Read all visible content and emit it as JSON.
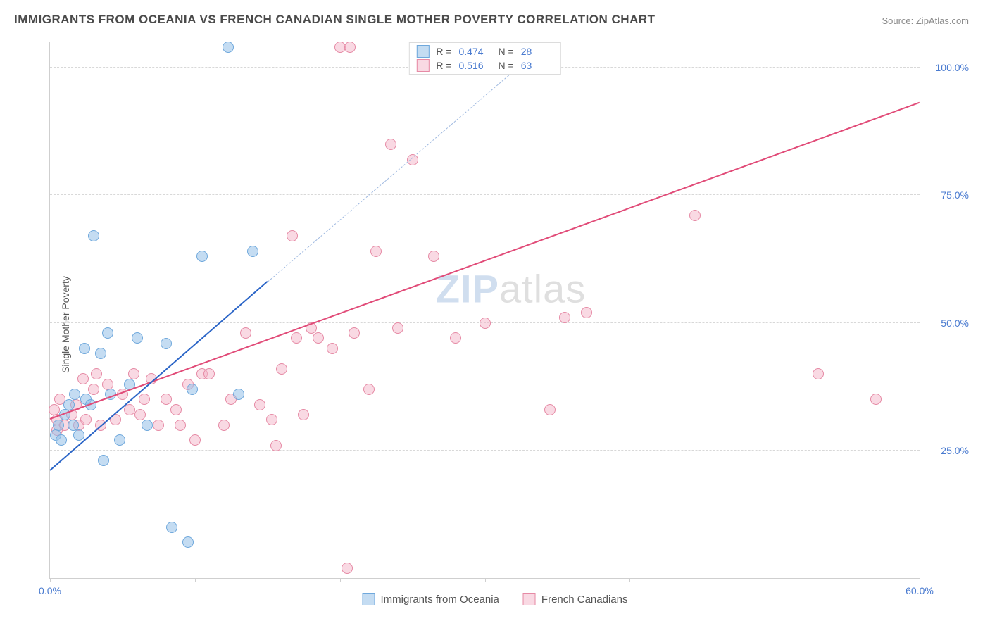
{
  "title": "IMMIGRANTS FROM OCEANIA VS FRENCH CANADIAN SINGLE MOTHER POVERTY CORRELATION CHART",
  "source": "Source: ZipAtlas.com",
  "ylabel": "Single Mother Poverty",
  "watermark": {
    "part1": "ZIP",
    "part2": "atlas"
  },
  "chart": {
    "type": "scatter",
    "xlim": [
      0,
      60
    ],
    "ylim": [
      0,
      105
    ],
    "background_color": "#ffffff",
    "grid_color": "#d8d8d8",
    "xticks": [
      0,
      10,
      20,
      30,
      40,
      50,
      60
    ],
    "xtick_labels": [
      "0.0%",
      "",
      "",
      "",
      "",
      "",
      "60.0%"
    ],
    "yticks": [
      25,
      50,
      75,
      100
    ],
    "ytick_labels": [
      "25.0%",
      "50.0%",
      "75.0%",
      "100.0%"
    ],
    "label_color": "#4a7bd0",
    "label_fontsize": 14
  },
  "series": [
    {
      "id": "oceania",
      "label": "Immigrants from Oceania",
      "fill": "rgba(148,192,232,0.55)",
      "stroke": "#6fa8dc",
      "marker_radius": 8,
      "r_value": "0.474",
      "n_value": "28",
      "regression": {
        "color_solid": "#2b65c7",
        "color_dash": "#9fb9e0",
        "x1": 0,
        "y1": 21,
        "xm": 15,
        "ym": 58,
        "x2": 33.5,
        "y2": 103
      },
      "points": [
        [
          0.4,
          28
        ],
        [
          0.6,
          30
        ],
        [
          0.8,
          27
        ],
        [
          1.0,
          32
        ],
        [
          1.3,
          34
        ],
        [
          1.6,
          30
        ],
        [
          1.7,
          36
        ],
        [
          2.0,
          28
        ],
        [
          2.4,
          45
        ],
        [
          2.5,
          35
        ],
        [
          2.8,
          34
        ],
        [
          3.5,
          44
        ],
        [
          3.7,
          23
        ],
        [
          4.0,
          48
        ],
        [
          4.2,
          36
        ],
        [
          4.8,
          27
        ],
        [
          5.5,
          38
        ],
        [
          6.0,
          47
        ],
        [
          6.7,
          30
        ],
        [
          8.0,
          46
        ],
        [
          8.4,
          10
        ],
        [
          9.5,
          7
        ],
        [
          9.8,
          37
        ],
        [
          10.5,
          63
        ],
        [
          13.0,
          36
        ],
        [
          14.0,
          64
        ],
        [
          3.0,
          67
        ],
        [
          12.3,
          104
        ]
      ]
    },
    {
      "id": "french",
      "label": "French Canadians",
      "fill": "rgba(244,180,200,0.5)",
      "stroke": "#e68aa5",
      "marker_radius": 8,
      "r_value": "0.516",
      "n_value": "63",
      "regression": {
        "color_solid": "#e14b78",
        "x1": 0,
        "y1": 31,
        "x2": 60,
        "y2": 93
      },
      "points": [
        [
          0.3,
          33
        ],
        [
          0.5,
          31
        ],
        [
          0.7,
          35
        ],
        [
          0.5,
          29
        ],
        [
          1.0,
          30
        ],
        [
          1.5,
          32
        ],
        [
          1.8,
          34
        ],
        [
          2.0,
          30
        ],
        [
          2.3,
          39
        ],
        [
          2.5,
          31
        ],
        [
          3.0,
          37
        ],
        [
          3.2,
          40
        ],
        [
          3.5,
          30
        ],
        [
          4.0,
          38
        ],
        [
          4.5,
          31
        ],
        [
          5.0,
          36
        ],
        [
          5.5,
          33
        ],
        [
          5.8,
          40
        ],
        [
          6.2,
          32
        ],
        [
          6.5,
          35
        ],
        [
          7.0,
          39
        ],
        [
          7.5,
          30
        ],
        [
          8.0,
          35
        ],
        [
          8.7,
          33
        ],
        [
          9.0,
          30
        ],
        [
          9.5,
          38
        ],
        [
          10.0,
          27
        ],
        [
          10.5,
          40
        ],
        [
          11.0,
          40
        ],
        [
          12.0,
          30
        ],
        [
          12.5,
          35
        ],
        [
          13.5,
          48
        ],
        [
          14.5,
          34
        ],
        [
          15.3,
          31
        ],
        [
          15.6,
          26
        ],
        [
          16.0,
          41
        ],
        [
          16.7,
          67
        ],
        [
          17.0,
          47
        ],
        [
          17.5,
          32
        ],
        [
          18.0,
          49
        ],
        [
          18.5,
          47
        ],
        [
          19.5,
          45
        ],
        [
          20.0,
          104
        ],
        [
          20.7,
          104
        ],
        [
          21.0,
          48
        ],
        [
          22.0,
          37
        ],
        [
          22.5,
          64
        ],
        [
          23.5,
          85
        ],
        [
          24.0,
          49
        ],
        [
          25.0,
          82
        ],
        [
          26.5,
          63
        ],
        [
          28.0,
          47
        ],
        [
          29.5,
          104
        ],
        [
          30.0,
          50
        ],
        [
          31.5,
          104
        ],
        [
          33.0,
          104
        ],
        [
          34.5,
          33
        ],
        [
          35.5,
          51
        ],
        [
          37.0,
          52
        ],
        [
          44.5,
          71
        ],
        [
          53.0,
          40
        ],
        [
          57.0,
          35
        ],
        [
          20.5,
          2
        ]
      ]
    }
  ],
  "legend_top": {
    "r_label": "R =",
    "n_label": "N ="
  }
}
